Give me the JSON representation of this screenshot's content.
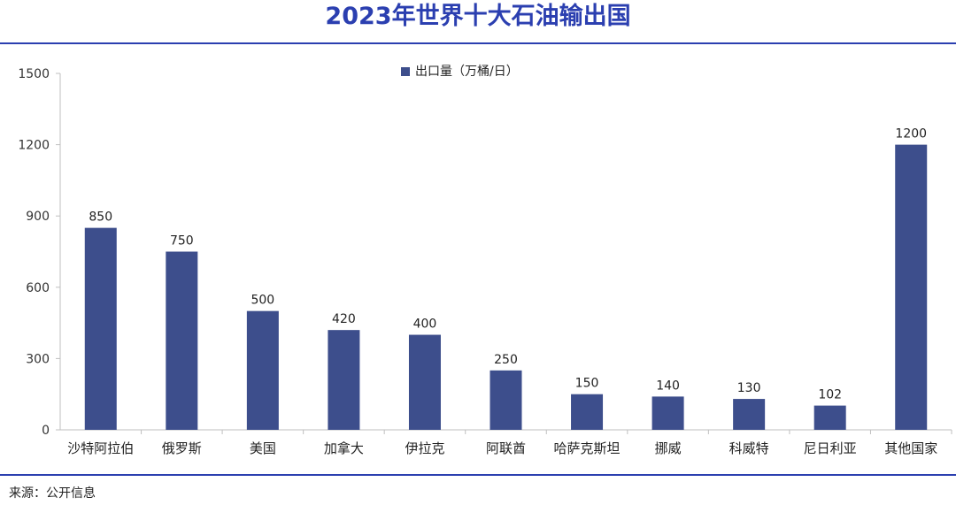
{
  "title": "2023年世界十大石油输出国",
  "source": "来源：公开信息",
  "colors": {
    "accent": "#2b3fb0",
    "bar": "#3d4e8c"
  },
  "chart_data": {
    "type": "bar",
    "title": "2023年世界十大石油输出国",
    "xlabel": "",
    "ylabel": "",
    "ylim": [
      0,
      1500
    ],
    "yticks": [
      "0",
      "300",
      "600",
      "900",
      "1200",
      "1500"
    ],
    "ytick_values": [
      0,
      300,
      600,
      900,
      1200,
      1500
    ],
    "grid": false,
    "legend_position": "top-center",
    "categories": [
      "沙特阿拉伯",
      "俄罗斯",
      "美国",
      "加拿大",
      "伊拉克",
      "阿联酋",
      "哈萨克斯坦",
      "挪威",
      "科威特",
      "尼日利亚",
      "其他国家"
    ],
    "series": [
      {
        "name": "出口量（万桶/日）",
        "values": [
          850,
          750,
          500,
          420,
          400,
          250,
          150,
          140,
          130,
          102,
          1200
        ]
      }
    ],
    "data_labels": [
      "850",
      "750",
      "500",
      "420",
      "400",
      "250",
      "150",
      "140",
      "130",
      "102",
      "1200"
    ]
  }
}
